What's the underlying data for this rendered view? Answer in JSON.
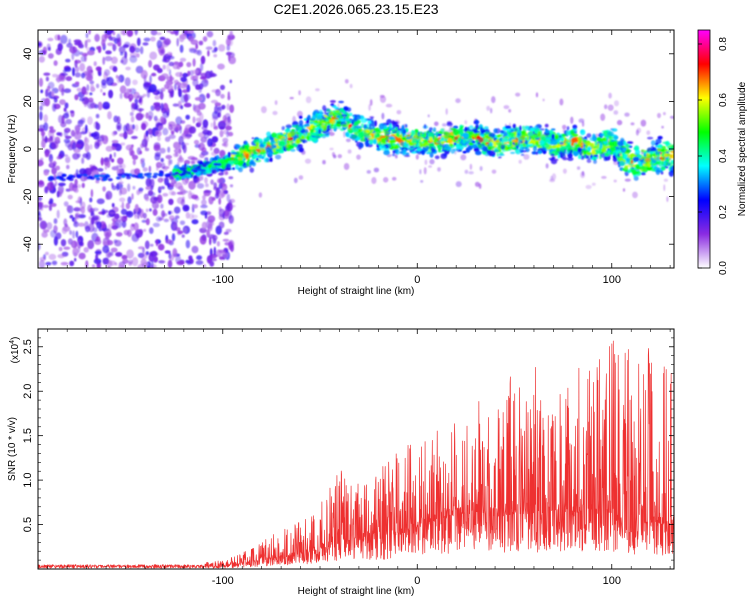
{
  "title": "C2E1.2026.065.23.15.E23",
  "chart_data": [
    {
      "type": "heatmap",
      "name": "spectrogram",
      "xlabel": "Height of straight line (km)",
      "ylabel": "Frequency (Hz)",
      "xlim": [
        -195,
        132
      ],
      "ylim": [
        -50,
        50
      ],
      "xticks": [
        -100,
        0,
        100
      ],
      "yticks": [
        -40,
        -20,
        0,
        20,
        40
      ],
      "ridge": {
        "x": [
          -195,
          -160,
          -120,
          -100,
          -90,
          -80,
          -70,
          -60,
          -50,
          -40,
          -35,
          -30,
          -20,
          -10,
          0,
          10,
          20,
          30,
          40,
          50,
          60,
          70,
          80,
          90,
          100,
          105,
          110,
          120,
          132
        ],
        "y": [
          -12,
          -12,
          -10,
          -6,
          -3,
          0,
          3,
          6,
          10,
          14,
          10,
          8,
          5,
          4,
          4,
          3,
          5,
          5,
          2,
          4,
          4,
          2,
          3,
          0,
          3,
          -3,
          -6,
          -4,
          -2
        ]
      },
      "noise_region_x": [
        -195,
        -105
      ],
      "colorbar": {
        "label": "Normalized spectral amplitude",
        "range": [
          0.0,
          0.85
        ],
        "ticks": [
          "0.0",
          "0.2",
          "0.4",
          "0.6",
          "0.8"
        ],
        "tick_values": [
          0.0,
          0.2,
          0.4,
          0.6,
          0.8
        ],
        "colors": [
          "#ffffff",
          "#8a2be2",
          "#0000ff",
          "#00ffff",
          "#00ff00",
          "#ffff00",
          "#ff0000",
          "#ff00ff"
        ]
      }
    },
    {
      "type": "line",
      "name": "snr",
      "xlabel": "Height of straight line (km)",
      "ylabel": "SNR (10 * v/v)",
      "multiplier_base": "(x10",
      "multiplier_exp": "4",
      "multiplier_close": ")",
      "xlim": [
        -195,
        132
      ],
      "ylim": [
        0.0,
        2.7
      ],
      "xticks": [
        -100,
        0,
        100
      ],
      "yticks": [
        "0.5",
        "1.0",
        "1.5",
        "2.0",
        "2.5"
      ],
      "ytick_values": [
        0.5,
        1.0,
        1.5,
        2.0,
        2.5
      ],
      "color": "#ee3030",
      "envelope": {
        "x": [
          -195,
          -120,
          -100,
          -90,
          -80,
          -70,
          -60,
          -50,
          -40,
          -30,
          -20,
          -10,
          0,
          10,
          20,
          30,
          40,
          50,
          60,
          70,
          80,
          90,
          100,
          110,
          120,
          132
        ],
        "base": [
          0.02,
          0.02,
          0.03,
          0.06,
          0.1,
          0.13,
          0.17,
          0.22,
          0.3,
          0.32,
          0.35,
          0.38,
          0.45,
          0.55,
          0.6,
          0.63,
          0.6,
          0.62,
          0.62,
          0.65,
          0.63,
          0.6,
          0.58,
          0.55,
          0.5,
          0.5
        ],
        "peak": [
          0.05,
          0.06,
          0.1,
          0.18,
          0.32,
          0.45,
          0.55,
          0.72,
          1.12,
          0.95,
          1.25,
          1.33,
          1.45,
          1.55,
          1.78,
          1.9,
          2.1,
          2.2,
          2.32,
          2.15,
          2.25,
          2.35,
          2.66,
          2.5,
          2.55,
          2.4
        ]
      }
    }
  ]
}
